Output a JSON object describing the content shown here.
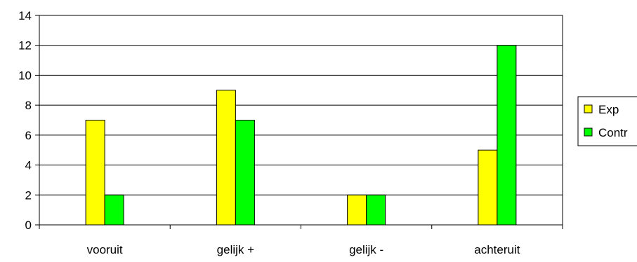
{
  "chart_data": {
    "type": "bar",
    "categories": [
      "vooruit",
      "gelijk +",
      "gelijk -",
      "achteruit"
    ],
    "series": [
      {
        "name": "Exp",
        "values": [
          7,
          9,
          2,
          5
        ],
        "color": "#FFFF00"
      },
      {
        "name": "Contr",
        "values": [
          2,
          7,
          2,
          12
        ],
        "color": "#00FF00"
      }
    ],
    "ylim": [
      0,
      14
    ],
    "yticks": [
      0,
      2,
      4,
      6,
      8,
      10,
      12,
      14
    ],
    "grid": true,
    "legend_position": "right"
  }
}
